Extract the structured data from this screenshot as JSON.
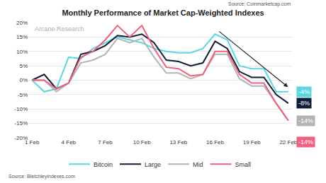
{
  "chart_data": {
    "type": "line",
    "title": "Monthly Performance of Market Cap-Weighted Indexes",
    "logo": "Arcane Research",
    "source_top": "Source: Coinmarketcap.com",
    "source_bottom": "Source: Bletchleyindexes.com",
    "categories": [
      "1 Feb",
      null,
      null,
      "4 Feb",
      null,
      null,
      "7 Feb",
      null,
      null,
      "10 Feb",
      null,
      null,
      "13 Feb",
      null,
      null,
      "16 Feb",
      null,
      null,
      "19 Feb",
      null,
      null,
      "22 Feb"
    ],
    "series": [
      {
        "name": "Bitcoin",
        "color": "#5ad8e0",
        "values": [
          0,
          -4,
          -3,
          8,
          7.5,
          11,
          13,
          15,
          14,
          13,
          11,
          10,
          9.5,
          9.5,
          11,
          16,
          14,
          5,
          4,
          4,
          -4,
          -4
        ],
        "value_labels": [
          null,
          null,
          null,
          null,
          null,
          null,
          null,
          null,
          null,
          null,
          null,
          null,
          null,
          null,
          null,
          null,
          null,
          null,
          null,
          null,
          null,
          "-4%"
        ]
      },
      {
        "name": "Large",
        "color": "#0f1d36",
        "values": [
          0,
          2,
          -3,
          -1,
          9,
          10,
          12,
          15.5,
          15,
          16,
          13,
          7,
          6.5,
          5,
          6,
          13.5,
          11,
          3,
          1,
          1,
          -5,
          -8
        ],
        "value_labels": [
          null,
          null,
          null,
          null,
          null,
          null,
          null,
          null,
          null,
          null,
          null,
          null,
          null,
          null,
          null,
          null,
          null,
          null,
          null,
          null,
          null,
          "-8%"
        ]
      },
      {
        "name": "Mid",
        "color": "#b3b3b3",
        "values": [
          0,
          0,
          -4,
          -1,
          6,
          7,
          9,
          14.5,
          13,
          14.5,
          8,
          2.5,
          2.5,
          0.5,
          2,
          9,
          9,
          0.5,
          -2,
          -2,
          -8,
          -14
        ],
        "value_labels": [
          null,
          null,
          null,
          null,
          null,
          null,
          null,
          null,
          null,
          null,
          null,
          null,
          null,
          null,
          null,
          null,
          null,
          null,
          null,
          null,
          null,
          "-14%"
        ]
      },
      {
        "name": "Small",
        "color": "#f0607e",
        "values": [
          0,
          0,
          -3,
          -1,
          8,
          10,
          14,
          19,
          15,
          19,
          11,
          4.5,
          4,
          1.5,
          2,
          10,
          10,
          2,
          -1,
          -1,
          -8,
          -14
        ],
        "value_labels": [
          null,
          null,
          null,
          null,
          null,
          null,
          null,
          null,
          null,
          null,
          null,
          null,
          null,
          null,
          null,
          null,
          null,
          null,
          null,
          null,
          null,
          "-14%"
        ]
      }
    ],
    "ylim": [
      -20,
      20
    ],
    "yticks": [
      {
        "value": -20,
        "label": "-20%"
      },
      {
        "value": -15,
        "label": "-15%"
      },
      {
        "value": -10,
        "label": "-10%"
      },
      {
        "value": -5,
        "label": "-5%"
      },
      {
        "value": 0,
        "label": "0%"
      },
      {
        "value": 5,
        "label": "5%"
      },
      {
        "value": 10,
        "label": "10%"
      },
      {
        "value": 15,
        "label": "15%"
      },
      {
        "value": 20,
        "label": "20%"
      }
    ],
    "grid": true,
    "legend": "bottom"
  }
}
